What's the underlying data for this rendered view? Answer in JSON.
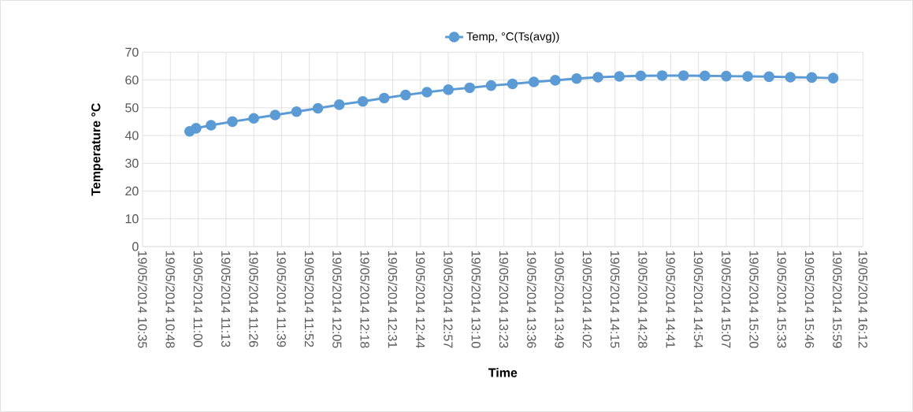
{
  "chart_data": {
    "type": "line",
    "xlabel": "Time",
    "ylabel": "Temperature °C",
    "x": [
      "2014-05-19T10:57",
      "2014-05-19T11:00",
      "2014-05-19T11:07",
      "2014-05-19T11:17",
      "2014-05-19T11:27",
      "2014-05-19T11:37",
      "2014-05-19T11:47",
      "2014-05-19T11:57",
      "2014-05-19T12:07",
      "2014-05-19T12:18",
      "2014-05-19T12:28",
      "2014-05-19T12:38",
      "2014-05-19T12:48",
      "2014-05-19T12:58",
      "2014-05-19T13:08",
      "2014-05-19T13:18",
      "2014-05-19T13:28",
      "2014-05-19T13:38",
      "2014-05-19T13:48",
      "2014-05-19T13:58",
      "2014-05-19T14:08",
      "2014-05-19T14:18",
      "2014-05-19T14:28",
      "2014-05-19T14:38",
      "2014-05-19T14:48",
      "2014-05-19T14:58",
      "2014-05-19T15:08",
      "2014-05-19T15:18",
      "2014-05-19T15:28",
      "2014-05-19T15:38",
      "2014-05-19T15:48",
      "2014-05-19T15:58"
    ],
    "series": [
      {
        "name": "Temp, °C(Ts(avg))",
        "color": "#5b9bd5",
        "values": [
          41.5,
          42.6,
          43.7,
          45.0,
          46.2,
          47.4,
          48.6,
          49.8,
          51.1,
          52.3,
          53.5,
          54.6,
          55.6,
          56.5,
          57.2,
          58.0,
          58.6,
          59.3,
          59.9,
          60.5,
          61.0,
          61.3,
          61.5,
          61.6,
          61.6,
          61.5,
          61.4,
          61.3,
          61.2,
          61.0,
          60.9,
          60.7
        ]
      }
    ],
    "xlim": [
      "2014-05-19T10:35",
      "2014-05-19T16:12"
    ],
    "xticks": [
      {
        "value": "2014-05-19T10:35",
        "label": "19/05/2014 10:35"
      },
      {
        "value": "2014-05-19T10:48",
        "label": "19/05/2014 10:48"
      },
      {
        "value": "2014-05-19T11:01",
        "label": "19/05/2014 11:00"
      },
      {
        "value": "2014-05-19T11:14",
        "label": "19/05/2014 11:13"
      },
      {
        "value": "2014-05-19T11:27",
        "label": "19/05/2014 11:26"
      },
      {
        "value": "2014-05-19T11:40",
        "label": "19/05/2014 11:39"
      },
      {
        "value": "2014-05-19T11:53",
        "label": "19/05/2014 11:52"
      },
      {
        "value": "2014-05-19T12:06",
        "label": "19/05/2014 12:05"
      },
      {
        "value": "2014-05-19T12:19",
        "label": "19/05/2014 12:18"
      },
      {
        "value": "2014-05-19T12:32",
        "label": "19/05/2014 12:31"
      },
      {
        "value": "2014-05-19T12:45",
        "label": "19/05/2014 12:44"
      },
      {
        "value": "2014-05-19T12:58",
        "label": "19/05/2014 12:57"
      },
      {
        "value": "2014-05-19T13:11",
        "label": "19/05/2014 13:10"
      },
      {
        "value": "2014-05-19T13:24",
        "label": "19/05/2014 13:23"
      },
      {
        "value": "2014-05-19T13:37",
        "label": "19/05/2014 13:36"
      },
      {
        "value": "2014-05-19T13:50",
        "label": "19/05/2014 13:49"
      },
      {
        "value": "2014-05-19T14:03",
        "label": "19/05/2014 14:02"
      },
      {
        "value": "2014-05-19T14:16",
        "label": "19/05/2014 14:15"
      },
      {
        "value": "2014-05-19T14:29",
        "label": "19/05/2014 14:28"
      },
      {
        "value": "2014-05-19T14:42",
        "label": "19/05/2014 14:41"
      },
      {
        "value": "2014-05-19T14:55",
        "label": "19/05/2014 14:54"
      },
      {
        "value": "2014-05-19T15:08",
        "label": "19/05/2014 15:07"
      },
      {
        "value": "2014-05-19T15:21",
        "label": "19/05/2014 15:20"
      },
      {
        "value": "2014-05-19T15:34",
        "label": "19/05/2014 15:33"
      },
      {
        "value": "2014-05-19T15:47",
        "label": "19/05/2014 15:46"
      },
      {
        "value": "2014-05-19T16:00",
        "label": "19/05/2014 15:59"
      },
      {
        "value": "2014-05-19T16:12",
        "label": "19/05/2014 16:12"
      }
    ],
    "ylim": [
      0,
      70
    ],
    "yticks": [
      0,
      10,
      20,
      30,
      40,
      50,
      60,
      70
    ],
    "grid": true,
    "legend": "top",
    "marker": "circle",
    "line_style": "solid"
  }
}
